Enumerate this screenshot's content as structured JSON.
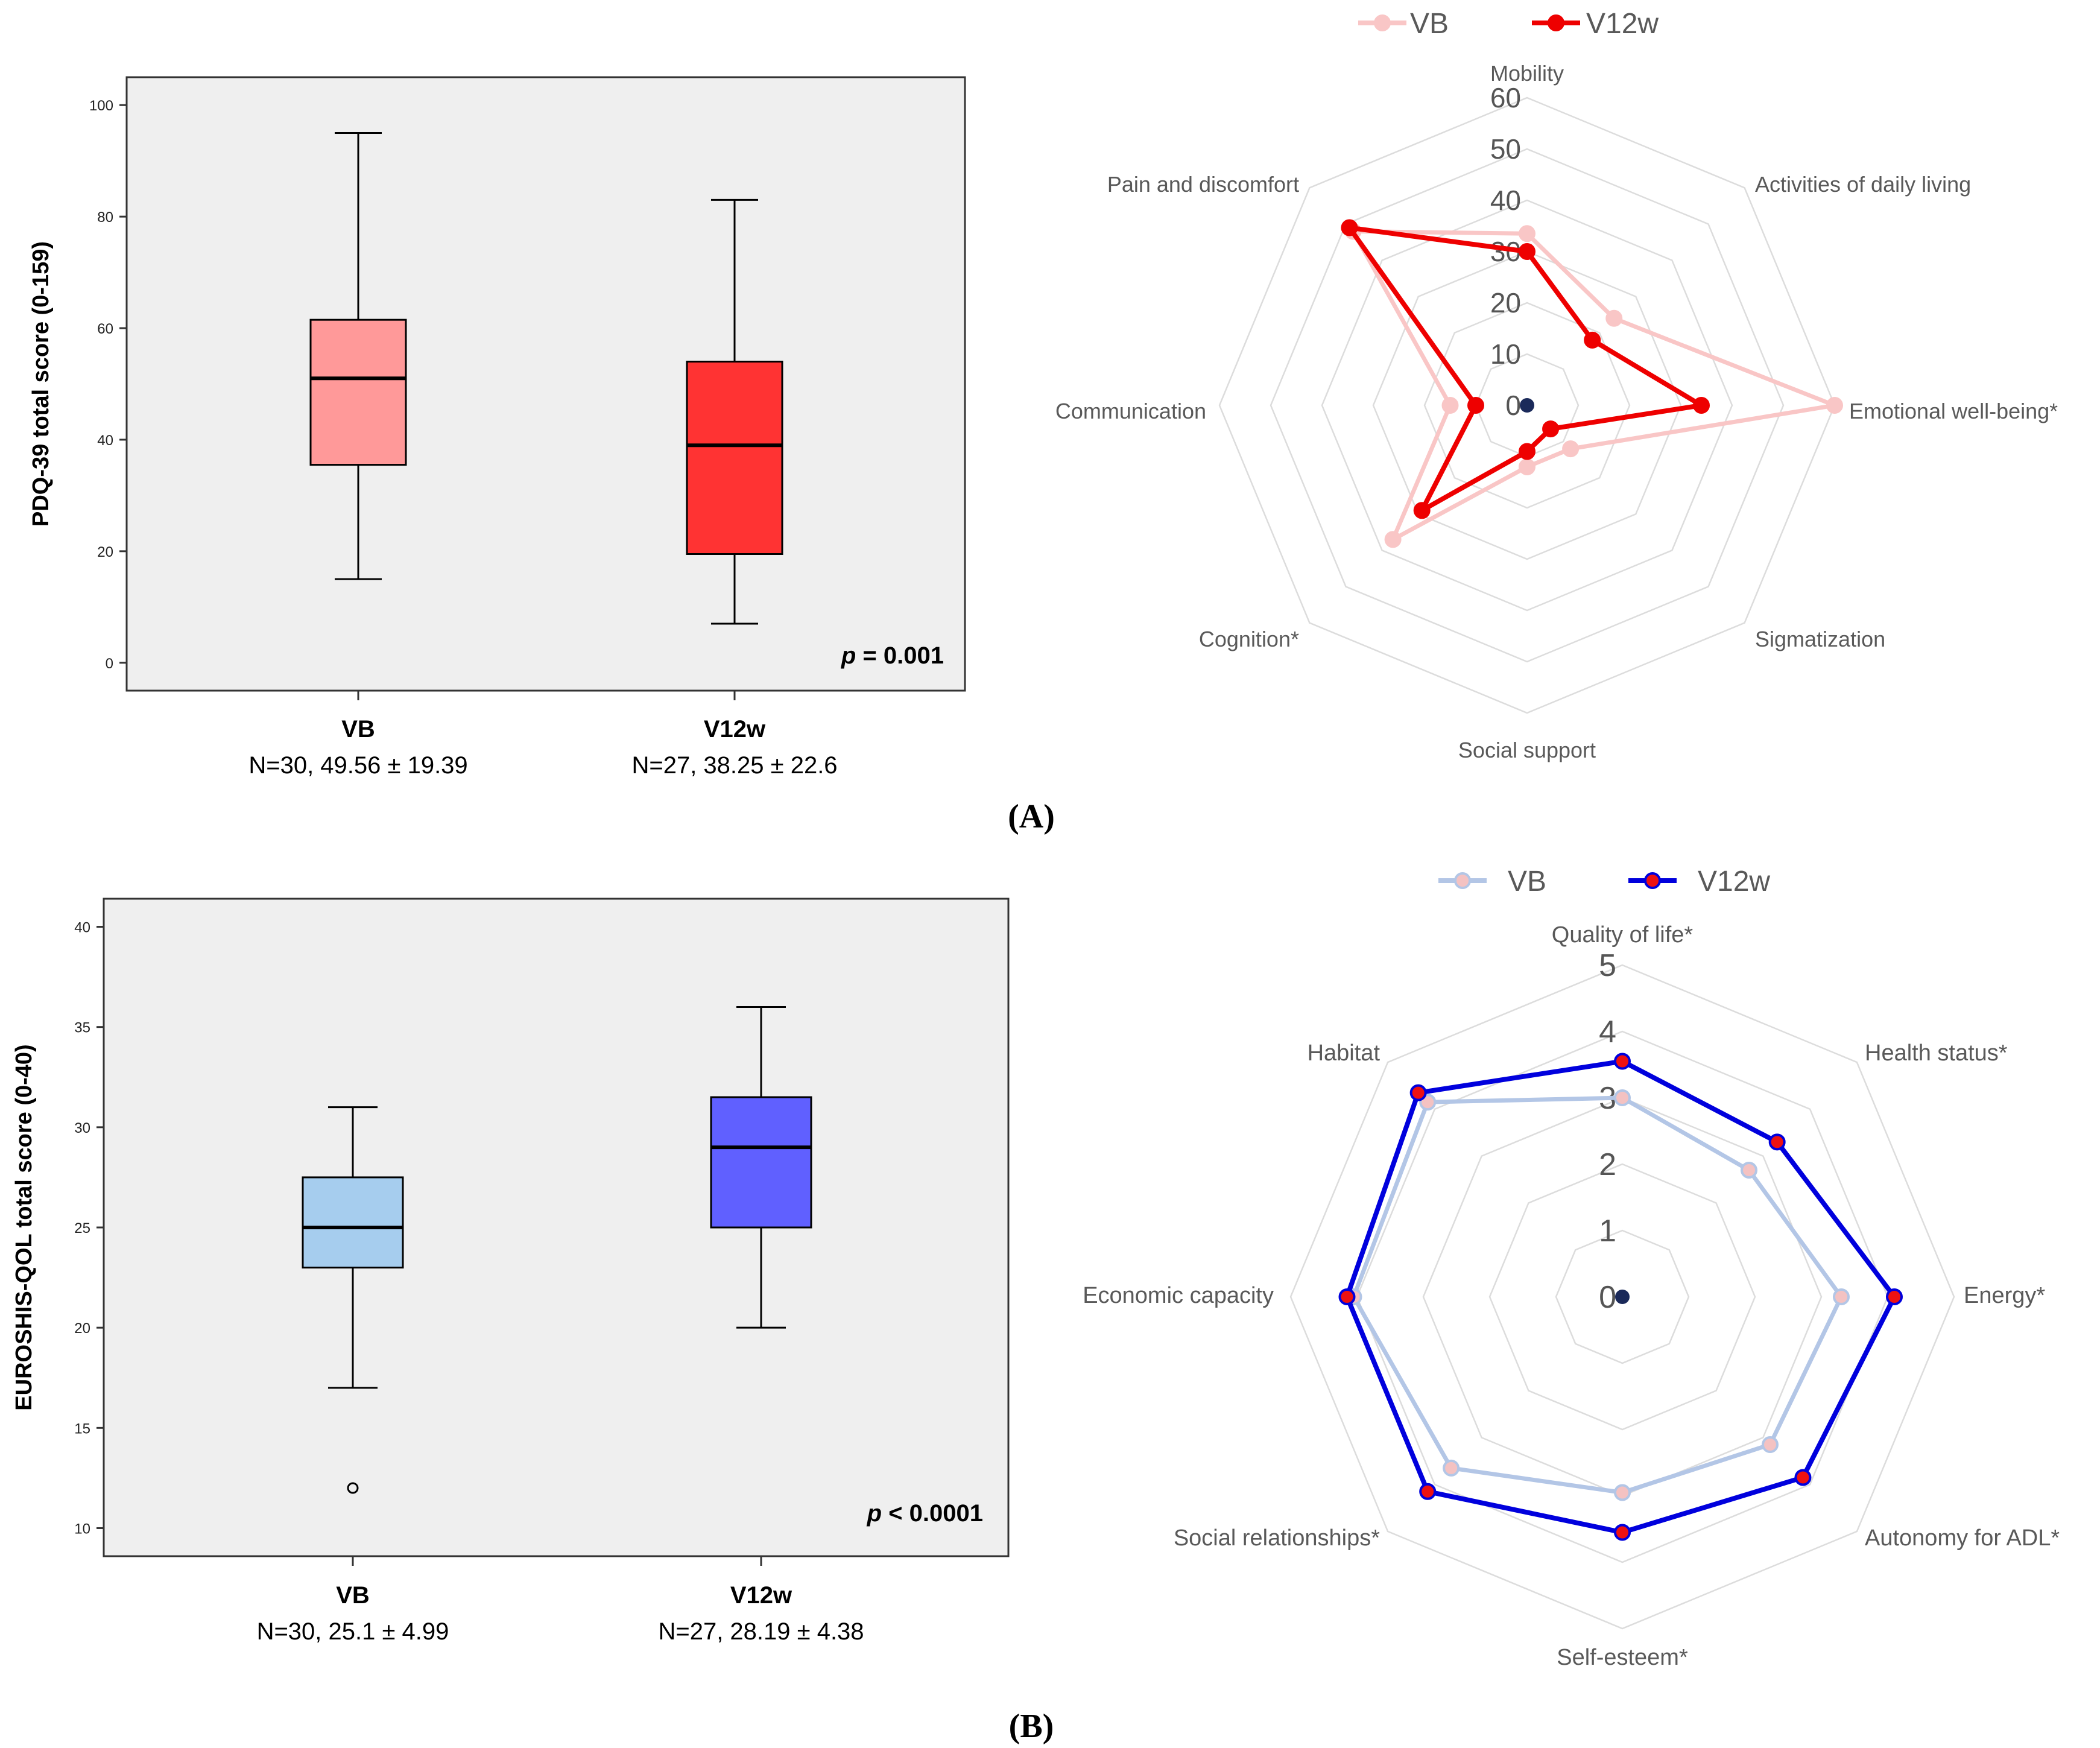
{
  "panels": [
    {
      "label": "(A)",
      "box": {
        "type": "box",
        "ylabel": "PDQ-39 total score (0-159)",
        "ylim": [
          -5,
          105
        ],
        "ticks": [
          0,
          20,
          40,
          60,
          80,
          100
        ],
        "tick_labels": [
          "0",
          "20",
          "40",
          "60",
          "80",
          "100"
        ],
        "p_label": "p",
        "p_value": "= 0.001",
        "groups": [
          {
            "name": "VB",
            "stats": "N=30, 49.56 ± 19.39",
            "whisker_low": 15,
            "q1": 35.5,
            "median": 51,
            "q3": 61.5,
            "whisker_high": 95,
            "outliers": [],
            "fill": "#ff9999"
          },
          {
            "name": "V12w",
            "stats": "N=27, 38.25 ± 22.6",
            "whisker_low": 7,
            "q1": 19.5,
            "median": 39,
            "q3": 54,
            "whisker_high": 83,
            "outliers": [],
            "fill": "#ff3333"
          }
        ]
      },
      "radar": {
        "type": "radar",
        "legend": [
          "VB",
          "V12w"
        ],
        "scale": [
          "0",
          "10",
          "20",
          "30",
          "40",
          "50",
          "60"
        ],
        "max": 60,
        "axes": [
          "Mobility",
          "Activities of daily living",
          "Emotional well-being*",
          "Sigmatization",
          "Social support",
          "Cognition*",
          "Communication",
          "Pain and discomfort"
        ],
        "series": [
          {
            "name": "VB",
            "values": [
              33.5,
              24,
              60,
              12,
              12,
              37,
              15,
              48
            ],
            "color": "#f9c6c6",
            "marker": "#f9c6c6"
          },
          {
            "name": "V12w",
            "values": [
              30,
              18,
              34,
              6.5,
              9,
              29,
              10,
              49
            ],
            "color": "#ee0000",
            "marker": "#ee0000"
          }
        ]
      }
    },
    {
      "label": "(B)",
      "box": {
        "type": "box",
        "ylabel": "EUROSHIS-QOL total score (0-40)",
        "ylim": [
          8.6,
          41.4
        ],
        "ticks": [
          10,
          15,
          20,
          25,
          30,
          35,
          40
        ],
        "tick_labels": [
          "10",
          "15",
          "20",
          "25",
          "30",
          "35",
          "40"
        ],
        "p_label": "p",
        "p_value": "< 0.0001",
        "groups": [
          {
            "name": "VB",
            "stats": "N=30, 25.1 ± 4.99",
            "whisker_low": 17,
            "q1": 23,
            "median": 25,
            "q3": 27.5,
            "whisker_high": 31,
            "outliers": [
              12
            ],
            "fill": "#a6cdee"
          },
          {
            "name": "V12w",
            "stats": "N=27, 28.19 ± 4.38",
            "whisker_low": 20,
            "q1": 25,
            "median": 29,
            "q3": 31.5,
            "whisker_high": 36,
            "outliers": [],
            "fill": "#6060ff"
          }
        ]
      },
      "radar": {
        "type": "radar",
        "legend": [
          "VB",
          "V12w"
        ],
        "scale": [
          "0",
          "1",
          "2",
          "3",
          "4",
          "5"
        ],
        "max": 5,
        "axes": [
          "Quality of life*",
          "Health status*",
          "Energy*",
          "Autonomy for ADL*",
          "Self-esteem*",
          "Social relationships*",
          "Economic capacity",
          "Habitat"
        ],
        "series": [
          {
            "name": "VB",
            "values": [
              3,
              2.7,
              3.3,
              3.15,
              2.95,
              3.65,
              4.05,
              4.15
            ],
            "color": "#b3c6e6",
            "marker": "#f4c2c2"
          },
          {
            "name": "V12w",
            "values": [
              3.55,
              3.3,
              4.1,
              3.85,
              3.55,
              4.15,
              4.15,
              4.35
            ],
            "color": "#0000dd",
            "marker": "#ee1111"
          }
        ]
      }
    }
  ],
  "chart_data": [
    {
      "type": "box",
      "ylabel": "PDQ-39 total score (0-159)",
      "categories": [
        "VB",
        "V12w"
      ],
      "series": [
        {
          "name": "VB",
          "min": 15,
          "q1": 35.5,
          "median": 51,
          "q3": 61.5,
          "max": 95
        },
        {
          "name": "V12w",
          "min": 7,
          "q1": 19.5,
          "median": 39,
          "q3": 54,
          "max": 83
        }
      ],
      "ylim": [
        0,
        100
      ],
      "annotations": [
        "p = 0.001",
        "N=30, 49.56 ± 19.39",
        "N=27, 38.25 ± 22.6"
      ]
    },
    {
      "type": "radar",
      "categories": [
        "Mobility",
        "Activities of daily living",
        "Emotional well-being*",
        "Sigmatization",
        "Social support",
        "Cognition*",
        "Communication",
        "Pain and discomfort"
      ],
      "series": [
        {
          "name": "VB",
          "values": [
            33.5,
            24,
            60,
            12,
            12,
            37,
            15,
            48
          ]
        },
        {
          "name": "V12w",
          "values": [
            30,
            18,
            34,
            6.5,
            9,
            29,
            10,
            49
          ]
        }
      ],
      "ylim": [
        0,
        60
      ]
    },
    {
      "type": "box",
      "ylabel": "EUROSHIS-QOL total score (0-40)",
      "categories": [
        "VB",
        "V12w"
      ],
      "series": [
        {
          "name": "VB",
          "min": 17,
          "q1": 23,
          "median": 25,
          "q3": 27.5,
          "max": 31,
          "outliers": [
            12
          ]
        },
        {
          "name": "V12w",
          "min": 20,
          "q1": 25,
          "median": 29,
          "q3": 31.5,
          "max": 36
        }
      ],
      "ylim": [
        10,
        40
      ],
      "annotations": [
        "p < 0.0001",
        "N=30, 25.1 ± 4.99",
        "N=27, 28.19 ± 4.38"
      ]
    },
    {
      "type": "radar",
      "categories": [
        "Quality of life*",
        "Health status*",
        "Energy*",
        "Autonomy for ADL*",
        "Self-esteem*",
        "Social relationships*",
        "Economic capacity",
        "Habitat"
      ],
      "series": [
        {
          "name": "VB",
          "values": [
            3,
            2.7,
            3.3,
            3.15,
            2.95,
            3.65,
            4.05,
            4.15
          ]
        },
        {
          "name": "V12w",
          "values": [
            3.55,
            3.3,
            4.1,
            3.85,
            3.55,
            4.15,
            4.15,
            4.35
          ]
        }
      ],
      "ylim": [
        0,
        5
      ]
    }
  ]
}
